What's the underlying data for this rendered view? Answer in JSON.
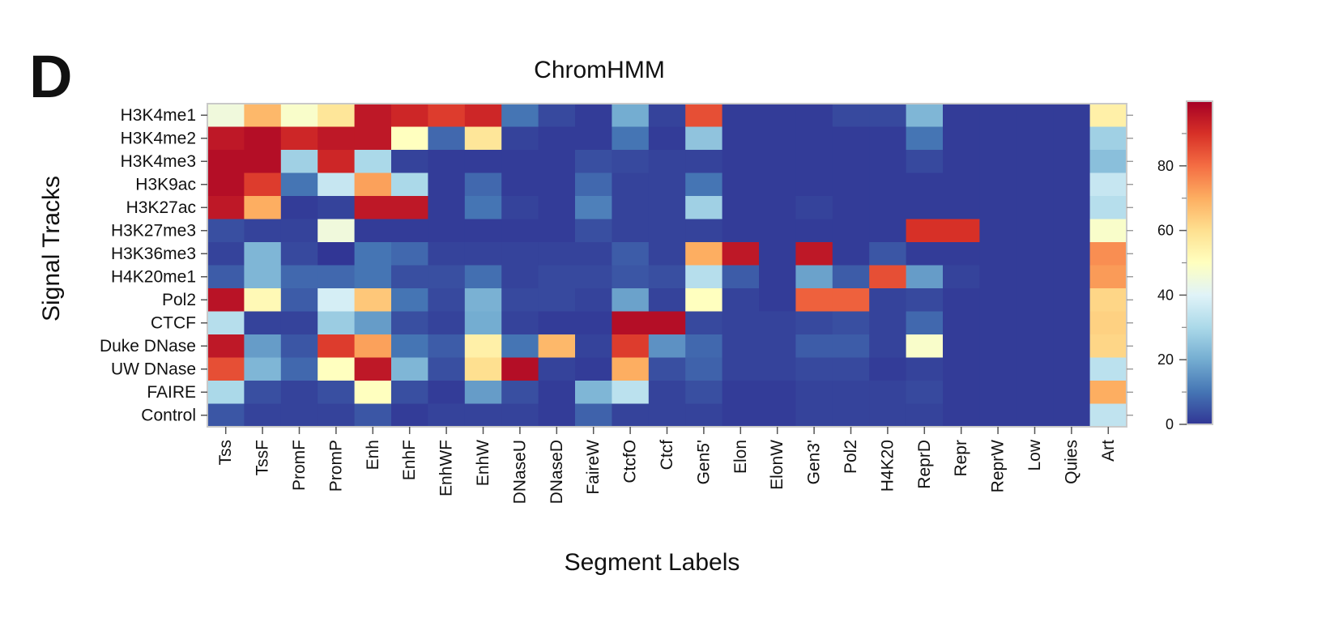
{
  "panel_letter": "D",
  "chart_data": {
    "type": "heatmap",
    "title": "ChromHMM",
    "xlabel": "Segment Labels",
    "ylabel": "Signal Tracks",
    "rows": [
      "H3K4me1",
      "H3K4me2",
      "H3K4me3",
      "H3K9ac",
      "H3K27ac",
      "H3K27me3",
      "H3K36me3",
      "H4K20me1",
      "Pol2",
      "CTCF",
      "Duke DNase",
      "UW DNase",
      "FAIRE",
      "Control"
    ],
    "columns": [
      "Tss",
      "TssF",
      "PromF",
      "PromP",
      "Enh",
      "EnhF",
      "EnhWF",
      "EnhW",
      "DNaseU",
      "DNaseD",
      "FaireW",
      "CtcfO",
      "Ctcf",
      "Gen5'",
      "Elon",
      "ElonW",
      "Gen3'",
      "Pol2",
      "H4K20",
      "ReprD",
      "Repr",
      "ReprW",
      "Low",
      "Quies",
      "Art"
    ],
    "values": [
      [
        45,
        68,
        48,
        58,
        95,
        92,
        88,
        92,
        10,
        3,
        1,
        20,
        2,
        85,
        1,
        1,
        1,
        3,
        3,
        22,
        1,
        1,
        1,
        1,
        55
      ],
      [
        95,
        97,
        92,
        95,
        95,
        50,
        8,
        58,
        2,
        1,
        1,
        10,
        1,
        25,
        1,
        1,
        1,
        1,
        1,
        10,
        1,
        1,
        1,
        1,
        28
      ],
      [
        97,
        97,
        28,
        92,
        30,
        2,
        1,
        1,
        1,
        1,
        4,
        3,
        2,
        2,
        1,
        1,
        1,
        1,
        1,
        3,
        1,
        1,
        1,
        1,
        24
      ],
      [
        97,
        88,
        10,
        35,
        72,
        30,
        1,
        8,
        1,
        1,
        8,
        2,
        2,
        10,
        1,
        1,
        1,
        1,
        1,
        1,
        1,
        1,
        1,
        1,
        35
      ],
      [
        95,
        70,
        1,
        2,
        95,
        95,
        1,
        10,
        2,
        1,
        12,
        2,
        2,
        28,
        1,
        1,
        2,
        1,
        1,
        1,
        1,
        1,
        1,
        1,
        32
      ],
      [
        4,
        2,
        2,
        45,
        1,
        1,
        1,
        1,
        1,
        1,
        4,
        2,
        2,
        2,
        1,
        1,
        1,
        1,
        1,
        90,
        90,
        1,
        1,
        1,
        48
      ],
      [
        2,
        22,
        3,
        0,
        10,
        8,
        2,
        2,
        2,
        2,
        2,
        6,
        2,
        70,
        95,
        1,
        95,
        1,
        5,
        1,
        1,
        1,
        1,
        1,
        75
      ],
      [
        6,
        22,
        8,
        8,
        10,
        4,
        4,
        9,
        2,
        3,
        3,
        5,
        4,
        32,
        6,
        1,
        18,
        6,
        85,
        17,
        2,
        1,
        1,
        1,
        73
      ],
      [
        96,
        52,
        6,
        38,
        65,
        10,
        3,
        21,
        3,
        3,
        2,
        18,
        2,
        50,
        2,
        1,
        82,
        82,
        2,
        3,
        1,
        1,
        1,
        1,
        62
      ],
      [
        32,
        2,
        2,
        27,
        17,
        4,
        2,
        20,
        2,
        1,
        1,
        97,
        97,
        3,
        2,
        2,
        3,
        4,
        2,
        8,
        1,
        1,
        1,
        1,
        63
      ],
      [
        95,
        17,
        5,
        88,
        72,
        10,
        6,
        55,
        10,
        68,
        2,
        88,
        15,
        8,
        2,
        2,
        6,
        6,
        2,
        48,
        1,
        1,
        1,
        1,
        62
      ],
      [
        85,
        22,
        8,
        50,
        95,
        22,
        4,
        60,
        97,
        2,
        1,
        70,
        4,
        7,
        2,
        2,
        3,
        3,
        1,
        2,
        1,
        1,
        1,
        1,
        33
      ],
      [
        30,
        4,
        2,
        4,
        50,
        4,
        1,
        17,
        4,
        1,
        22,
        33,
        2,
        4,
        1,
        1,
        2,
        2,
        2,
        3,
        1,
        1,
        1,
        1,
        70
      ],
      [
        5,
        2,
        2,
        2,
        5,
        1,
        2,
        2,
        2,
        1,
        7,
        2,
        2,
        2,
        1,
        1,
        2,
        2,
        2,
        2,
        1,
        1,
        1,
        1,
        34
      ]
    ],
    "colorbar": {
      "min": 0,
      "max": 100,
      "ticks": [
        0,
        20,
        40,
        60,
        80
      ],
      "tick_labels": [
        "0",
        "20",
        "40",
        "60",
        "80"
      ]
    },
    "colorscale": [
      "#313695",
      "#4575b4",
      "#74add1",
      "#abd9e9",
      "#e0f3f8",
      "#ffffbf",
      "#fee090",
      "#fdae61",
      "#f46d43",
      "#d73027",
      "#a50026"
    ]
  }
}
